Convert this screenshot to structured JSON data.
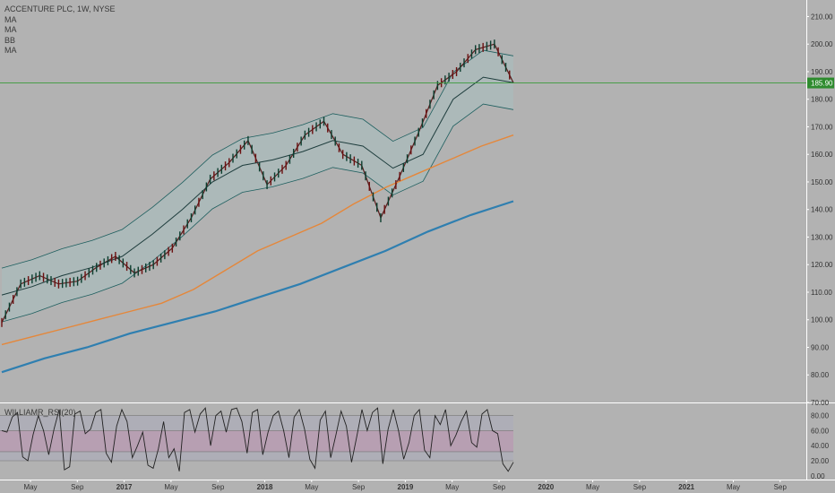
{
  "chart_data": [
    {
      "type": "line",
      "title": "ACCENTURE PLC, 1W, NYSE",
      "indicators": [
        "MA",
        "MA",
        "BB",
        "MA"
      ],
      "ylim": [
        70,
        216
      ],
      "y_ticks": [
        "210.00",
        "200.00",
        "190.00",
        "180.00",
        "170.00",
        "160.00",
        "150.00",
        "140.00",
        "130.00",
        "120.00",
        "110.00",
        "100.00",
        "90.00",
        "80.00",
        "70.00"
      ],
      "x_ticks": [
        "May",
        "Sep",
        "2017",
        "May",
        "Sep",
        "2018",
        "May",
        "Sep",
        "2019",
        "May",
        "Sep",
        "2020",
        "May",
        "Sep",
        "2021",
        "May",
        "Sep"
      ],
      "last_price": "185.90",
      "series": [
        {
          "values": [
            99,
            113,
            116,
            113,
            114,
            119,
            123,
            117,
            120,
            126,
            137,
            151,
            157,
            165,
            149,
            156,
            167,
            172,
            160,
            156,
            137,
            152,
            168,
            185,
            190,
            198,
            200,
            186
          ]
        },
        {
          "values": [
            109,
            112,
            116,
            119,
            123,
            131,
            140,
            150,
            156,
            158,
            161,
            165,
            163,
            155,
            160,
            180,
            188,
            186
          ]
        },
        {
          "values": [
            91,
            94,
            97,
            100,
            103,
            106,
            111,
            118,
            125,
            130,
            135,
            142,
            148,
            153,
            158,
            163,
            167
          ]
        },
        {
          "values": [
            81,
            86,
            90,
            95,
            99,
            103,
            108,
            113,
            119,
            125,
            132,
            138,
            143
          ]
        }
      ]
    },
    {
      "type": "line",
      "title": "WILLIAMR_RSI(20)",
      "ylim": [
        -5,
        95
      ],
      "y_ticks": [
        "80.00",
        "60.00",
        "40.00",
        "20.00",
        "0.00"
      ],
      "bands": [
        [
          20,
          80
        ],
        [
          32,
          60
        ]
      ],
      "series": [
        {
          "values": [
            60,
            58,
            78,
            84,
            25,
            20,
            55,
            80,
            60,
            28,
            62,
            88,
            8,
            12,
            82,
            86,
            56,
            62,
            84,
            88,
            30,
            18,
            66,
            88,
            72,
            24,
            40,
            58,
            14,
            10,
            36,
            72,
            24,
            36,
            6,
            84,
            88,
            58,
            82,
            90,
            40,
            80,
            86,
            58,
            88,
            90,
            72,
            30,
            84,
            88,
            28,
            58,
            80,
            86,
            60,
            24,
            78,
            88,
            62,
            22,
            10,
            74,
            86,
            24,
            54,
            86,
            66,
            18,
            52,
            88,
            60,
            84,
            90,
            16,
            62,
            88,
            60,
            22,
            44,
            80,
            88,
            34,
            24,
            80,
            68,
            88,
            40,
            54,
            72,
            86,
            44,
            38,
            82,
            88,
            60,
            56,
            16,
            6,
            18
          ]
        }
      ]
    }
  ]
}
